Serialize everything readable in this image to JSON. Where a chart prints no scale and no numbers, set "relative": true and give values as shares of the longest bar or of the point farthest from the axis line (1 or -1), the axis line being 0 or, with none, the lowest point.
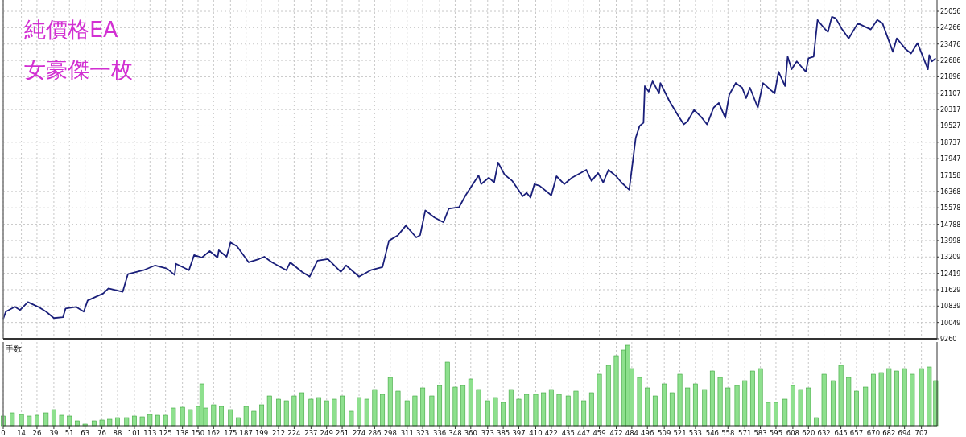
{
  "chart_data": [
    {
      "type": "line",
      "title": "純價格EA",
      "subtitle": "女豪傑一枚",
      "xlim": [
        0,
        719
      ],
      "ylim": [
        9260,
        25600
      ],
      "xticks": [
        0,
        14,
        26,
        39,
        51,
        63,
        76,
        88,
        101,
        113,
        125,
        138,
        150,
        162,
        175,
        187,
        199,
        212,
        224,
        237,
        249,
        261,
        274,
        286,
        298,
        311,
        323,
        336,
        348,
        360,
        373,
        385,
        397,
        410,
        422,
        435,
        447,
        459,
        472,
        484,
        496,
        509,
        521,
        533,
        546,
        558,
        571,
        583,
        595,
        608,
        620,
        632,
        645,
        657,
        670,
        682,
        694,
        707
      ],
      "yticks": [
        9260,
        10049,
        10839,
        11629,
        12419,
        13209,
        13998,
        14788,
        15578,
        16368,
        17158,
        17947,
        18737,
        19527,
        20317,
        21107,
        21896,
        22686,
        23476,
        24266,
        25056
      ],
      "tick_labels": "y",
      "grid": true,
      "series": [
        {
          "color": "#1a1f7a",
          "x": [
            0,
            2,
            9,
            13,
            19,
            27,
            33,
            39,
            46,
            48,
            56,
            62,
            65,
            77,
            81,
            92,
            96,
            108,
            117,
            126,
            132,
            133,
            143,
            147,
            153,
            159,
            165,
            166,
            172,
            175,
            180,
            189,
            197,
            201,
            207,
            218,
            221,
            230,
            236,
            242,
            250,
            260,
            264,
            274,
            283,
            292,
            297,
            304,
            310,
            318,
            321,
            325,
            332,
            339,
            343,
            351,
            356,
            366,
            368,
            374,
            378,
            381,
            386,
            392,
            400,
            403,
            406,
            409,
            413,
            422,
            426,
            432,
            438,
            449,
            453,
            458,
            462,
            466,
            472,
            476,
            482,
            487,
            490,
            493,
            494,
            497,
            500,
            505,
            506,
            513,
            520,
            524,
            527,
            532,
            537,
            542,
            547,
            551,
            556,
            559,
            564,
            569,
            572,
            575,
            581,
            585,
            591,
            594,
            597,
            602,
            604,
            607,
            611,
            618,
            620,
            624,
            627,
            632,
            635,
            638,
            641,
            646,
            651,
            658,
            668,
            673,
            677,
            685,
            688,
            695,
            699,
            704,
            712,
            713,
            715,
            718
          ],
          "values": [
            10220,
            10570,
            10800,
            10650,
            11030,
            10800,
            10570,
            10260,
            10300,
            10720,
            10800,
            10570,
            11110,
            11450,
            11690,
            11530,
            12380,
            12570,
            12800,
            12650,
            12340,
            12880,
            12570,
            13300,
            13180,
            13490,
            13180,
            13530,
            13220,
            13910,
            13720,
            12950,
            13110,
            13220,
            12950,
            12570,
            12950,
            12490,
            12260,
            13030,
            13110,
            12490,
            12800,
            12260,
            12570,
            12720,
            13990,
            14260,
            14720,
            14150,
            14260,
            15450,
            15110,
            14880,
            15530,
            15610,
            16180,
            17140,
            16720,
            17030,
            16800,
            17760,
            17180,
            16870,
            16140,
            16300,
            16070,
            16720,
            16640,
            16180,
            17100,
            16720,
            17030,
            17410,
            16870,
            17260,
            16800,
            17410,
            17100,
            16800,
            16450,
            18950,
            19530,
            19680,
            21450,
            21180,
            21680,
            21100,
            21600,
            20720,
            19990,
            19600,
            19760,
            20300,
            19990,
            19600,
            20410,
            20640,
            19910,
            21030,
            21600,
            21370,
            20870,
            21370,
            20410,
            21600,
            21260,
            21100,
            22140,
            21450,
            22870,
            22260,
            22640,
            22140,
            22790,
            22870,
            24640,
            24250,
            24060,
            24790,
            24720,
            24180,
            23750,
            24480,
            24180,
            24640,
            24480,
            23100,
            23750,
            23220,
            23020,
            23520,
            22260,
            22950,
            22640,
            22790
          ]
        }
      ]
    },
    {
      "type": "bar",
      "ylabel": "手数",
      "relative": true,
      "xlim": [
        0,
        719
      ],
      "xticks": [
        0,
        14,
        26,
        39,
        51,
        63,
        76,
        88,
        101,
        113,
        125,
        138,
        150,
        162,
        175,
        187,
        199,
        212,
        224,
        237,
        249,
        261,
        274,
        286,
        298,
        311,
        323,
        336,
        348,
        360,
        373,
        385,
        397,
        410,
        422,
        435,
        447,
        459,
        472,
        484,
        496,
        509,
        521,
        533,
        546,
        558,
        571,
        583,
        595,
        608,
        620,
        632,
        645,
        657,
        670,
        682,
        694,
        707
      ],
      "tick_labels": "x",
      "grid": "x",
      "series": [
        {
          "color": "#8ee08e",
          "x": [
            0,
            7,
            14,
            20,
            26,
            33,
            39,
            45,
            51,
            57,
            63,
            70,
            76,
            82,
            88,
            95,
            101,
            107,
            113,
            119,
            125,
            131,
            138,
            144,
            150,
            153,
            156,
            162,
            168,
            175,
            181,
            187,
            193,
            199,
            205,
            212,
            218,
            224,
            230,
            237,
            243,
            249,
            255,
            261,
            268,
            274,
            280,
            286,
            292,
            298,
            304,
            311,
            317,
            323,
            330,
            336,
            342,
            348,
            354,
            360,
            366,
            373,
            379,
            385,
            391,
            397,
            403,
            410,
            416,
            422,
            428,
            435,
            441,
            447,
            453,
            459,
            466,
            472,
            478,
            481,
            484,
            490,
            496,
            502,
            509,
            515,
            521,
            527,
            533,
            540,
            546,
            552,
            558,
            565,
            571,
            577,
            583,
            589,
            595,
            602,
            608,
            614,
            620,
            626,
            632,
            639,
            645,
            651,
            657,
            664,
            670,
            676,
            682,
            688,
            694,
            700,
            707,
            713,
            718
          ],
          "values": [
            0.12,
            0.16,
            0.14,
            0.12,
            0.13,
            0.16,
            0.2,
            0.13,
            0.12,
            0.06,
            0.02,
            0.06,
            0.07,
            0.08,
            0.1,
            0.1,
            0.12,
            0.11,
            0.14,
            0.13,
            0.13,
            0.22,
            0.23,
            0.2,
            0.24,
            0.52,
            0.22,
            0.26,
            0.24,
            0.2,
            0.1,
            0.24,
            0.18,
            0.26,
            0.37,
            0.33,
            0.31,
            0.37,
            0.41,
            0.33,
            0.35,
            0.31,
            0.33,
            0.37,
            0.18,
            0.35,
            0.33,
            0.45,
            0.39,
            0.6,
            0.43,
            0.31,
            0.37,
            0.47,
            0.37,
            0.5,
            0.79,
            0.48,
            0.5,
            0.58,
            0.45,
            0.31,
            0.35,
            0.29,
            0.45,
            0.33,
            0.39,
            0.39,
            0.41,
            0.45,
            0.39,
            0.37,
            0.43,
            0.31,
            0.41,
            0.64,
            0.75,
            0.87,
            0.94,
            1.0,
            0.71,
            0.6,
            0.47,
            0.37,
            0.52,
            0.41,
            0.64,
            0.47,
            0.52,
            0.45,
            0.68,
            0.6,
            0.47,
            0.5,
            0.56,
            0.68,
            0.71,
            0.29,
            0.29,
            0.33,
            0.5,
            0.45,
            0.47,
            0.1,
            0.64,
            0.56,
            0.75,
            0.6,
            0.43,
            0.48,
            0.64,
            0.66,
            0.71,
            0.68,
            0.71,
            0.64,
            0.71,
            0.73,
            0.56
          ]
        }
      ]
    }
  ]
}
